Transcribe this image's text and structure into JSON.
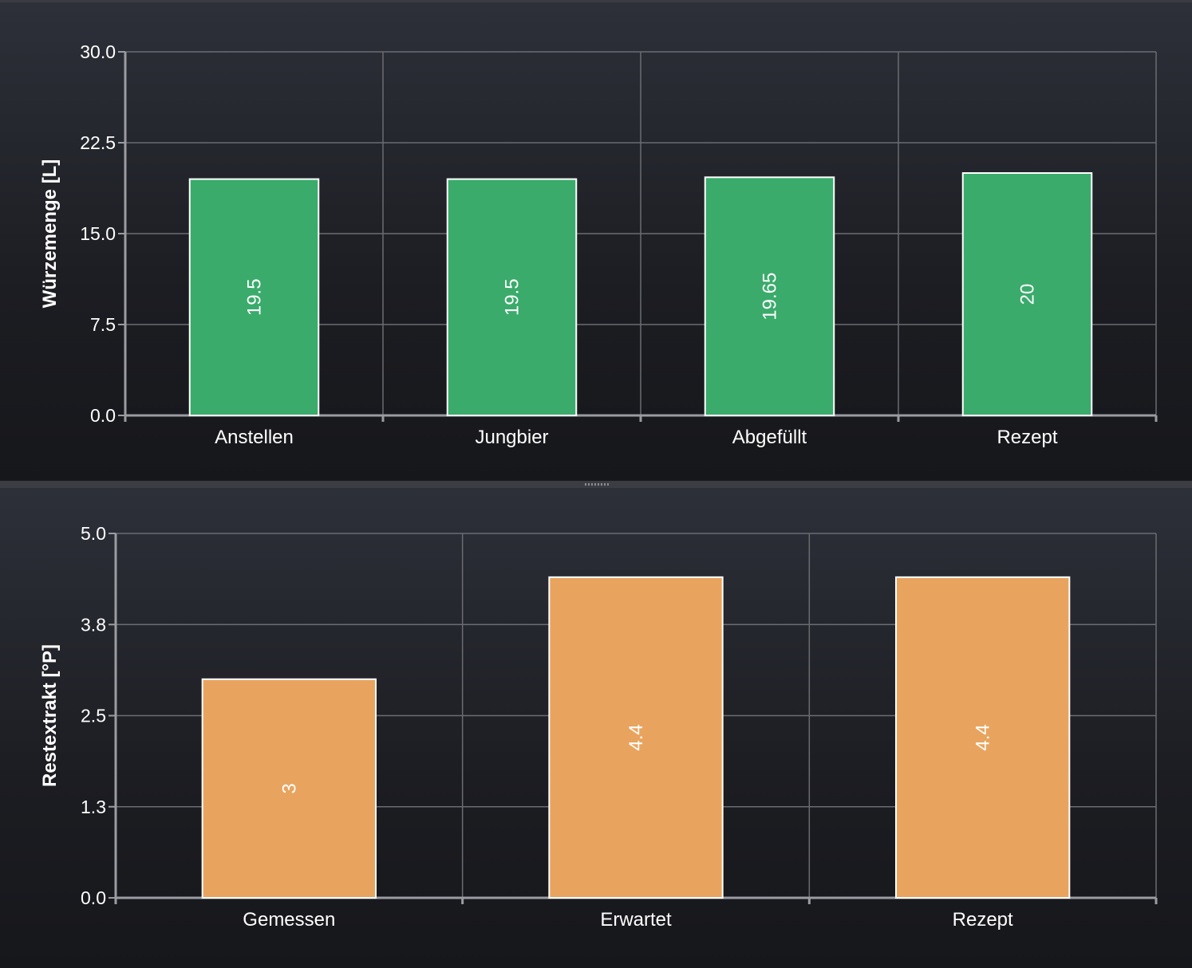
{
  "chart_data": [
    {
      "type": "bar",
      "categories": [
        "Anstellen",
        "Jungbier",
        "Abgefüllt",
        "Rezept"
      ],
      "values": [
        19.5,
        19.5,
        19.65,
        20
      ],
      "value_labels": [
        "19.5",
        "19.5",
        "19.65",
        "20"
      ],
      "ylabel": "Würzemenge [L]",
      "ylim": [
        0,
        30
      ],
      "yticks": [
        "0.0",
        "7.5",
        "15.0",
        "22.5",
        "30.0"
      ],
      "bar_color": "#3aab6b",
      "grid": true
    },
    {
      "type": "bar",
      "categories": [
        "Gemessen",
        "Erwartet",
        "Rezept"
      ],
      "values": [
        3,
        4.4,
        4.4
      ],
      "value_labels": [
        "3",
        "4.4",
        "4.4"
      ],
      "ylabel": "Restextrakt [°P]",
      "ylim": [
        0,
        5
      ],
      "yticks": [
        "0.0",
        "1.3",
        "2.5",
        "3.8",
        "5.0"
      ],
      "bar_color": "#e8a45e",
      "grid": true
    }
  ]
}
